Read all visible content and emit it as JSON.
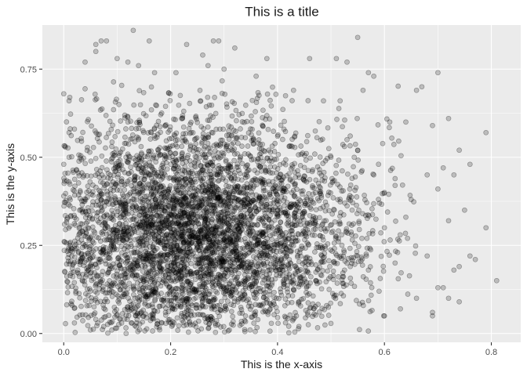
{
  "chart_data": {
    "type": "scatter",
    "title": "This is a title",
    "xlabel": "This is the x-axis",
    "ylabel": "This is the y-axis",
    "xlim": [
      -0.04,
      0.855
    ],
    "ylim": [
      -0.025,
      0.875
    ],
    "x_ticks": [
      0.0,
      0.2,
      0.4,
      0.6,
      0.8
    ],
    "x_tick_labels": [
      "0.0",
      "0.2",
      "0.4",
      "0.6",
      "0.8"
    ],
    "y_ticks": [
      0.0,
      0.25,
      0.5,
      0.75
    ],
    "y_tick_labels": [
      "0.00",
      "0.25",
      "0.50",
      "0.75"
    ],
    "grid": true,
    "legend": "none",
    "point_color": "#000000",
    "panel_color": "#ebebeb",
    "series": [
      {
        "points": [
          [
            0.13,
            0.86
          ],
          [
            0.55,
            0.84
          ],
          [
            0.07,
            0.83
          ],
          [
            0.08,
            0.83
          ],
          [
            0.28,
            0.83
          ],
          [
            0.29,
            0.83
          ],
          [
            0.16,
            0.83
          ],
          [
            0.06,
            0.82
          ],
          [
            0.32,
            0.81
          ],
          [
            0.23,
            0.82
          ],
          [
            0.06,
            0.8
          ],
          [
            0.26,
            0.79
          ],
          [
            0.38,
            0.78
          ],
          [
            0.1,
            0.78
          ],
          [
            0.12,
            0.77
          ],
          [
            0.46,
            0.78
          ],
          [
            0.51,
            0.78
          ],
          [
            0.53,
            0.77
          ],
          [
            0.04,
            0.77
          ],
          [
            0.14,
            0.76
          ],
          [
            0.17,
            0.74
          ],
          [
            0.21,
            0.74
          ],
          [
            0.27,
            0.76
          ],
          [
            0.3,
            0.75
          ],
          [
            0.57,
            0.74
          ],
          [
            0.58,
            0.73
          ],
          [
            0.7,
            0.74
          ],
          [
            0.36,
            0.73
          ],
          [
            0.0,
            0.68
          ],
          [
            0.01,
            0.66
          ],
          [
            0.56,
            0.69
          ],
          [
            0.67,
            0.7
          ],
          [
            0.66,
            0.69
          ],
          [
            0.72,
            0.61
          ],
          [
            0.43,
            0.69
          ],
          [
            0.64,
            0.6
          ],
          [
            0.79,
            0.57
          ],
          [
            0.69,
            0.59
          ],
          [
            0.02,
            0.58
          ],
          [
            0.74,
            0.52
          ],
          [
            0.76,
            0.48
          ],
          [
            0.61,
            0.6
          ],
          [
            0.01,
            0.5
          ],
          [
            0.0,
            0.48
          ],
          [
            0.71,
            0.47
          ],
          [
            0.68,
            0.45
          ],
          [
            0.73,
            0.45
          ],
          [
            0.7,
            0.41
          ],
          [
            0.01,
            0.43
          ],
          [
            0.0,
            0.39
          ],
          [
            0.75,
            0.35
          ],
          [
            0.72,
            0.32
          ],
          [
            0.79,
            0.3
          ],
          [
            0.81,
            0.15
          ],
          [
            0.76,
            0.22
          ],
          [
            0.77,
            0.21
          ],
          [
            0.74,
            0.19
          ],
          [
            0.73,
            0.18
          ],
          [
            0.7,
            0.13
          ],
          [
            0.71,
            0.13
          ],
          [
            0.69,
            0.06
          ],
          [
            0.69,
            0.05
          ],
          [
            0.72,
            0.1
          ],
          [
            0.74,
            0.09
          ],
          [
            0.68,
            0.22
          ],
          [
            0.66,
            0.1
          ],
          [
            0.05,
            0.01
          ],
          [
            0.09,
            0.01
          ],
          [
            0.31,
            0.01
          ],
          [
            0.44,
            0.02
          ],
          [
            0.6,
            0.05
          ],
          [
            0.63,
            0.07
          ],
          [
            0.34,
            0.05
          ],
          [
            0.2,
            0.03
          ],
          [
            0.06,
            0.04
          ],
          [
            0.02,
            0.03
          ],
          [
            0.64,
            0.33
          ],
          [
            0.65,
            0.38
          ],
          [
            0.62,
            0.42
          ],
          [
            0.6,
            0.4
          ],
          [
            0.58,
            0.45
          ],
          [
            0.55,
            0.52
          ],
          [
            0.53,
            0.55
          ],
          [
            0.5,
            0.5
          ],
          [
            0.52,
            0.28
          ],
          [
            0.55,
            0.22
          ],
          [
            0.57,
            0.18
          ],
          [
            0.59,
            0.12
          ],
          [
            0.62,
            0.2
          ],
          [
            0.6,
            0.3
          ]
        ]
      }
    ],
    "density": {
      "seed": 20240531,
      "count": 4700,
      "x_mean": 0.25,
      "x_sd": 0.155,
      "y_mean": 0.28,
      "y_sd": 0.165,
      "x_range": [
        0.0,
        0.66
      ],
      "y_range": [
        0.0,
        0.72
      ]
    }
  }
}
